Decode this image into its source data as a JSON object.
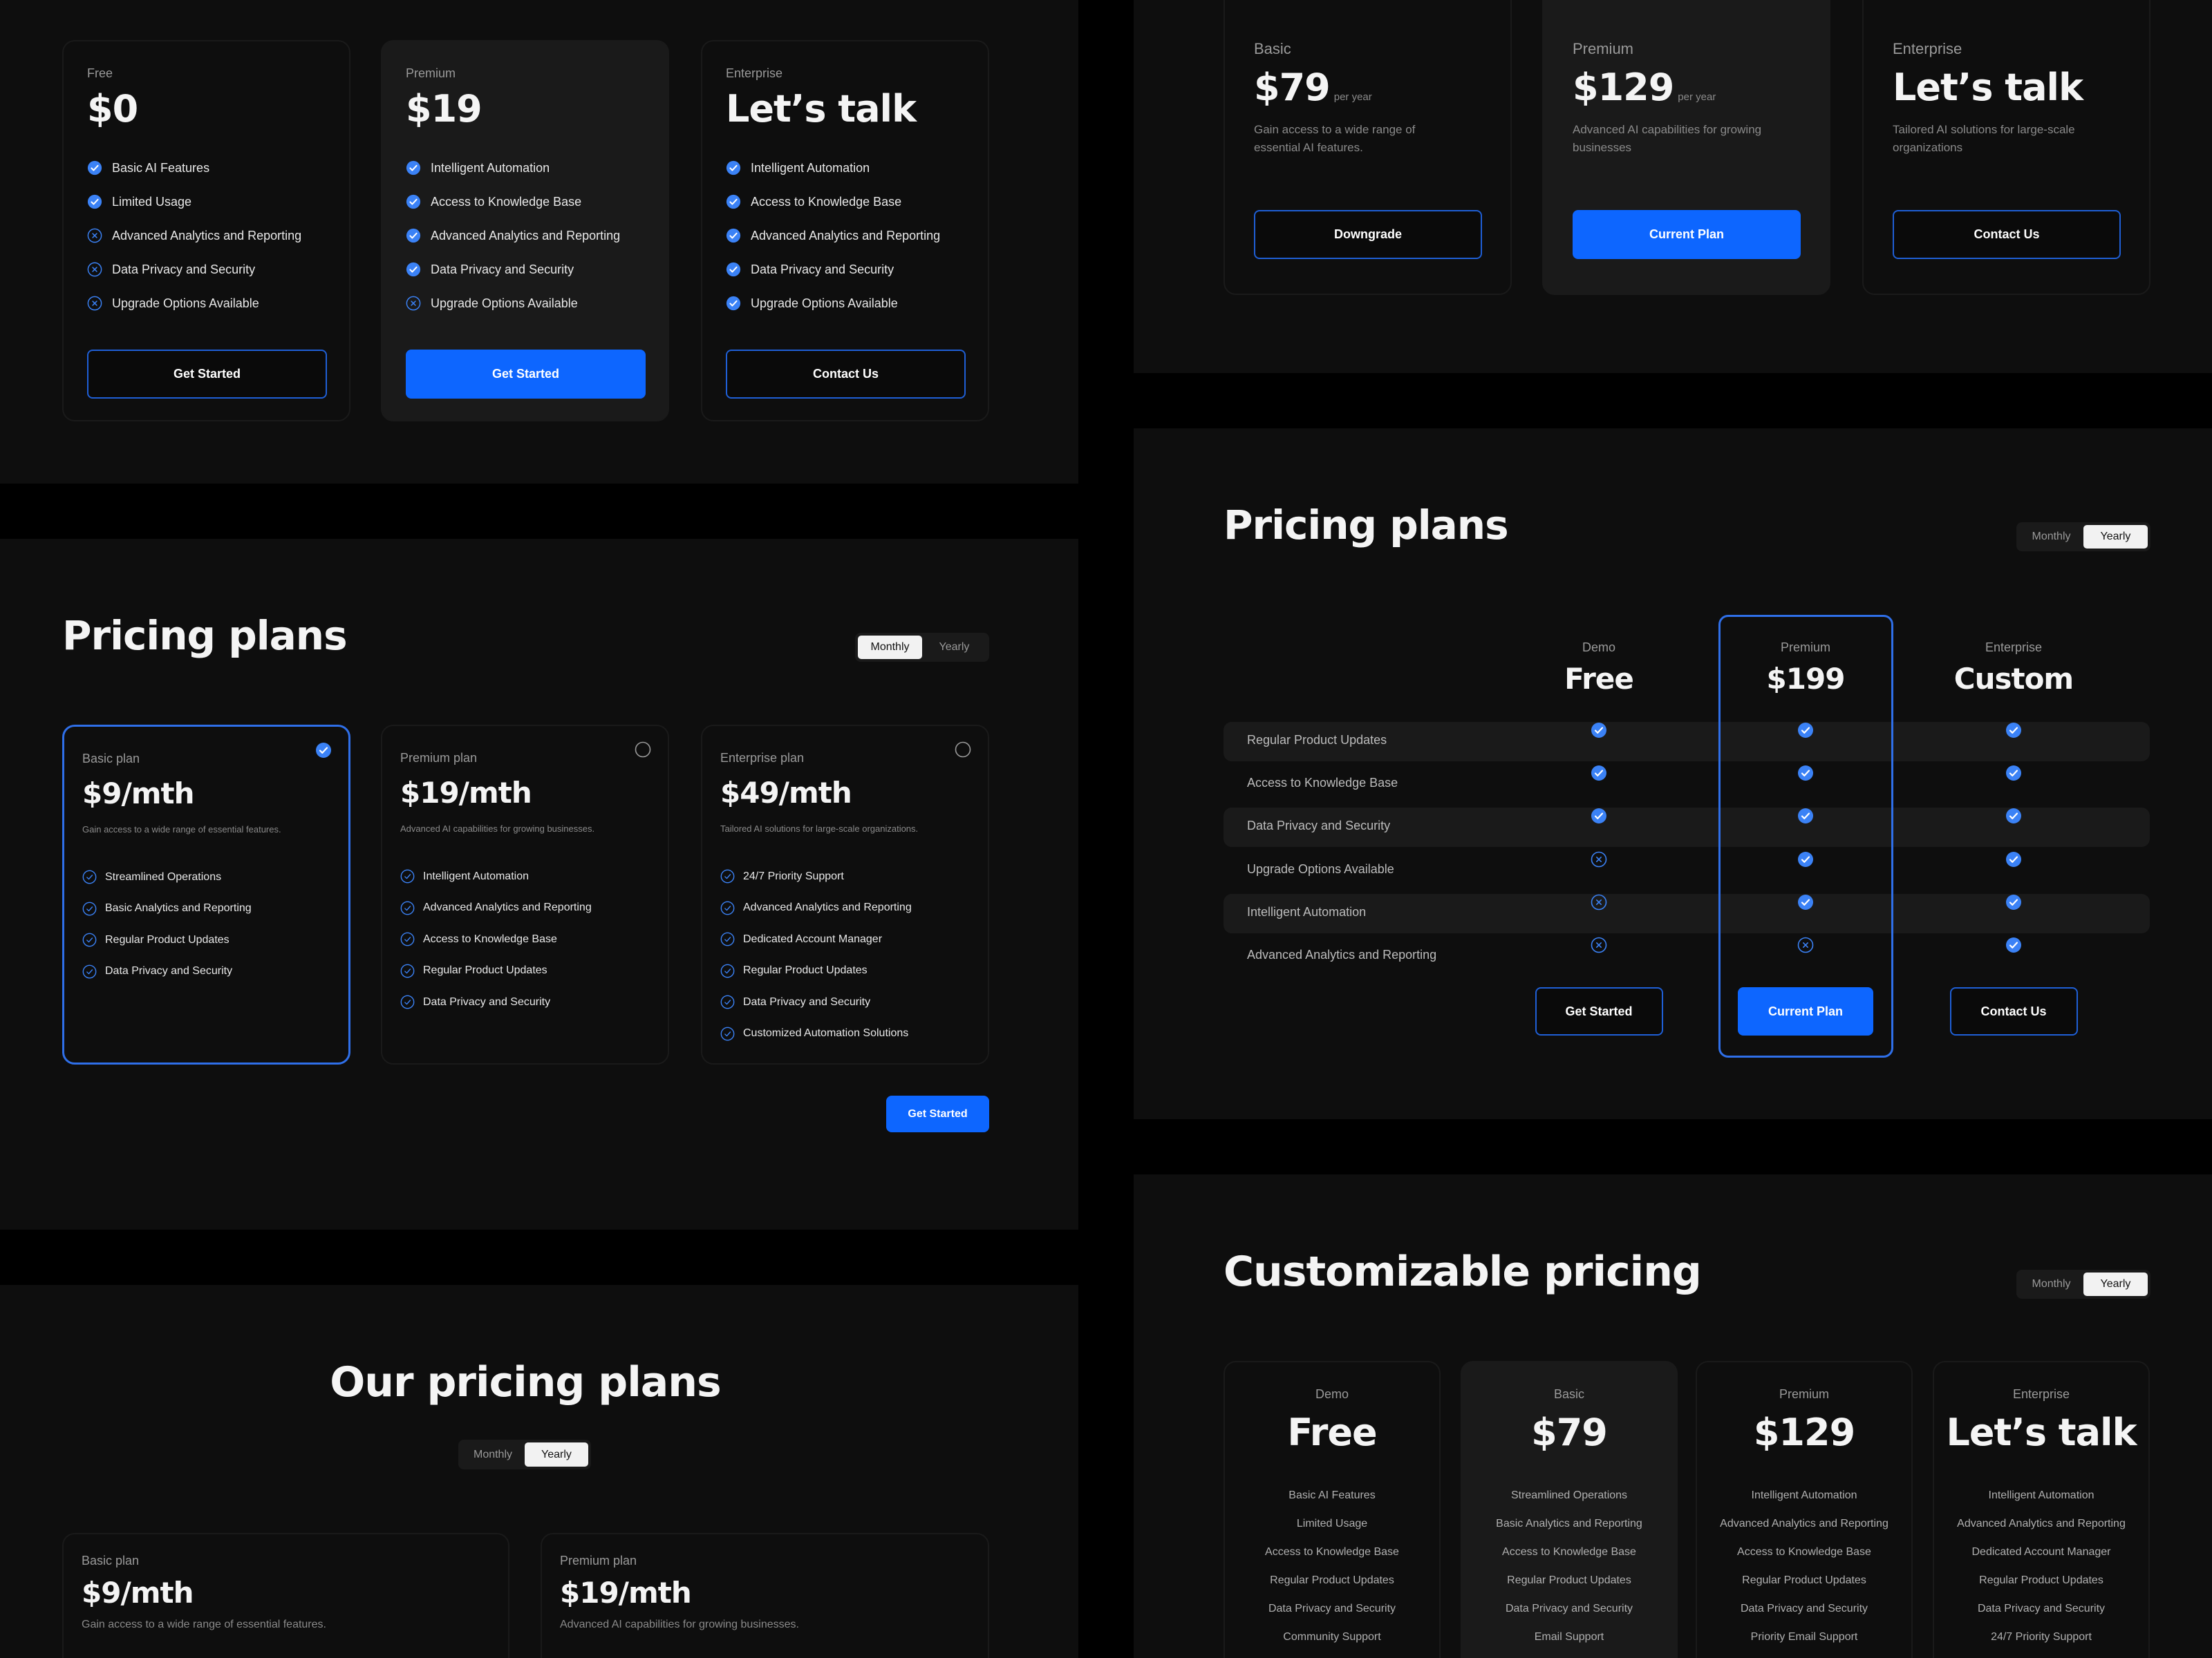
{
  "colors": {
    "accent": "#0d66ff",
    "icon_blue": "#3b82f6",
    "panel_bg": "#0e0e0e",
    "card_highlight": "#1a1a1a"
  },
  "panel_a": {
    "cards": [
      {
        "label": "Free",
        "price": "$0",
        "features": [
          {
            "text": "Basic AI Features",
            "icon": "check-filled"
          },
          {
            "text": "Limited Usage",
            "icon": "check-filled"
          },
          {
            "text": "Advanced Analytics and Reporting",
            "icon": "x-outline"
          },
          {
            "text": "Data Privacy and Security",
            "icon": "x-outline"
          },
          {
            "text": "Upgrade Options Available",
            "icon": "x-outline"
          }
        ],
        "button": {
          "label": "Get Started",
          "style": "outline"
        }
      },
      {
        "label": "Premium",
        "price": "$19",
        "highlight": true,
        "features": [
          {
            "text": "Intelligent Automation",
            "icon": "check-filled"
          },
          {
            "text": "Access to Knowledge Base",
            "icon": "check-filled"
          },
          {
            "text": "Advanced Analytics and Reporting",
            "icon": "check-filled"
          },
          {
            "text": "Data Privacy and Security",
            "icon": "check-filled"
          },
          {
            "text": "Upgrade Options Available",
            "icon": "x-outline"
          }
        ],
        "button": {
          "label": "Get Started",
          "style": "fill"
        }
      },
      {
        "label": "Enterprise",
        "price": "Let’s talk",
        "features": [
          {
            "text": "Intelligent Automation",
            "icon": "check-filled"
          },
          {
            "text": "Access to Knowledge Base",
            "icon": "check-filled"
          },
          {
            "text": "Advanced Analytics and Reporting",
            "icon": "check-filled"
          },
          {
            "text": "Data Privacy and Security",
            "icon": "check-filled"
          },
          {
            "text": "Upgrade Options Available",
            "icon": "check-filled"
          }
        ],
        "button": {
          "label": "Contact Us",
          "style": "outline"
        }
      }
    ]
  },
  "panel_b": {
    "title": "Pricing plans",
    "toggle": {
      "options": [
        "Monthly",
        "Yearly"
      ],
      "selected": "Monthly"
    },
    "cards": [
      {
        "label": "Basic plan",
        "price": "$9/mth",
        "desc": "Gain access to a wide range of essential features.",
        "selected": true,
        "features": [
          "Streamlined Operations",
          "Basic Analytics and Reporting",
          "Regular Product Updates",
          "Data Privacy and Security"
        ]
      },
      {
        "label": "Premium plan",
        "price": "$19/mth",
        "desc": "Advanced AI capabilities for growing businesses.",
        "selected": false,
        "features": [
          "Intelligent Automation",
          "Advanced Analytics and Reporting",
          "Access to Knowledge Base",
          "Regular Product Updates",
          "Data Privacy and Security"
        ]
      },
      {
        "label": "Enterprise plan",
        "price": "$49/mth",
        "desc": "Tailored AI solutions for large-scale organizations.",
        "selected": false,
        "features": [
          "24/7 Priority Support",
          "Advanced Analytics and Reporting",
          "Dedicated Account Manager",
          "Regular Product Updates",
          "Data Privacy and Security",
          "Customized Automation Solutions"
        ]
      }
    ],
    "button": "Get Started"
  },
  "panel_c": {
    "title": "Our pricing plans",
    "toggle": {
      "options": [
        "Monthly",
        "Yearly"
      ],
      "selected": "Yearly"
    },
    "cards": [
      {
        "label": "Basic plan",
        "price": "$9/mth",
        "desc": "Gain access to a wide range of essential features."
      },
      {
        "label": "Premium plan",
        "price": "$19/mth",
        "desc": "Advanced AI capabilities for growing businesses."
      }
    ]
  },
  "panel_d": {
    "cards": [
      {
        "label": "Basic",
        "price": "$79",
        "period": "per year",
        "desc": "Gain access to a wide range of essential AI features.",
        "button": {
          "label": "Downgrade",
          "style": "outline"
        }
      },
      {
        "label": "Premium",
        "price": "$129",
        "period": "per year",
        "desc": "Advanced AI capabilities for growing businesses",
        "highlight": true,
        "button": {
          "label": "Current Plan",
          "style": "fill"
        }
      },
      {
        "label": "Enterprise",
        "price": "Let’s talk",
        "desc": "Tailored AI solutions for large-scale organizations",
        "button": {
          "label": "Contact Us",
          "style": "outline"
        }
      }
    ]
  },
  "panel_e": {
    "title": "Pricing plans",
    "toggle": {
      "options": [
        "Monthly",
        "Yearly"
      ],
      "selected": "Yearly"
    },
    "columns": [
      {
        "label": "Demo",
        "price": "Free",
        "button": {
          "label": "Get Started",
          "style": "outline"
        }
      },
      {
        "label": "Premium",
        "price": "$199",
        "highlight": true,
        "button": {
          "label": "Current Plan",
          "style": "fill"
        }
      },
      {
        "label": "Enterprise",
        "price": "Custom",
        "button": {
          "label": "Contact Us",
          "style": "outline"
        }
      }
    ],
    "rows": [
      {
        "feature": "Regular Product Updates",
        "values": [
          true,
          true,
          true
        ]
      },
      {
        "feature": "Access to Knowledge Base",
        "values": [
          true,
          true,
          true
        ]
      },
      {
        "feature": "Data Privacy and Security",
        "values": [
          true,
          true,
          true
        ]
      },
      {
        "feature": "Upgrade Options Available",
        "values": [
          false,
          true,
          true
        ]
      },
      {
        "feature": "Intelligent Automation",
        "values": [
          false,
          true,
          true
        ]
      },
      {
        "feature": "Advanced Analytics and Reporting",
        "values": [
          false,
          false,
          true
        ]
      }
    ]
  },
  "panel_f": {
    "title": "Customizable pricing",
    "toggle": {
      "options": [
        "Monthly",
        "Yearly"
      ],
      "selected": "Yearly"
    },
    "cards": [
      {
        "label": "Demo",
        "price": "Free",
        "features": [
          "Basic AI Features",
          "Limited Usage",
          "Access to Knowledge Base",
          "Regular Product Updates",
          "Data Privacy and Security",
          "Community Support"
        ]
      },
      {
        "label": "Basic",
        "price": "$79",
        "highlight": true,
        "features": [
          "Streamlined Operations",
          "Basic Analytics and Reporting",
          "Access to Knowledge Base",
          "Regular Product Updates",
          "Data Privacy and Security",
          "Email Support"
        ]
      },
      {
        "label": "Premium",
        "price": "$129",
        "features": [
          "Intelligent Automation",
          "Advanced Analytics and Reporting",
          "Access to Knowledge Base",
          "Regular Product Updates",
          "Data Privacy and Security",
          "Priority Email Support"
        ]
      },
      {
        "label": "Enterprise",
        "price": "Let’s talk",
        "features": [
          "Intelligent Automation",
          "Advanced Analytics and Reporting",
          "Dedicated Account Manager",
          "Regular Product Updates",
          "Data Privacy and Security",
          "24/7 Priority Support"
        ]
      }
    ]
  }
}
